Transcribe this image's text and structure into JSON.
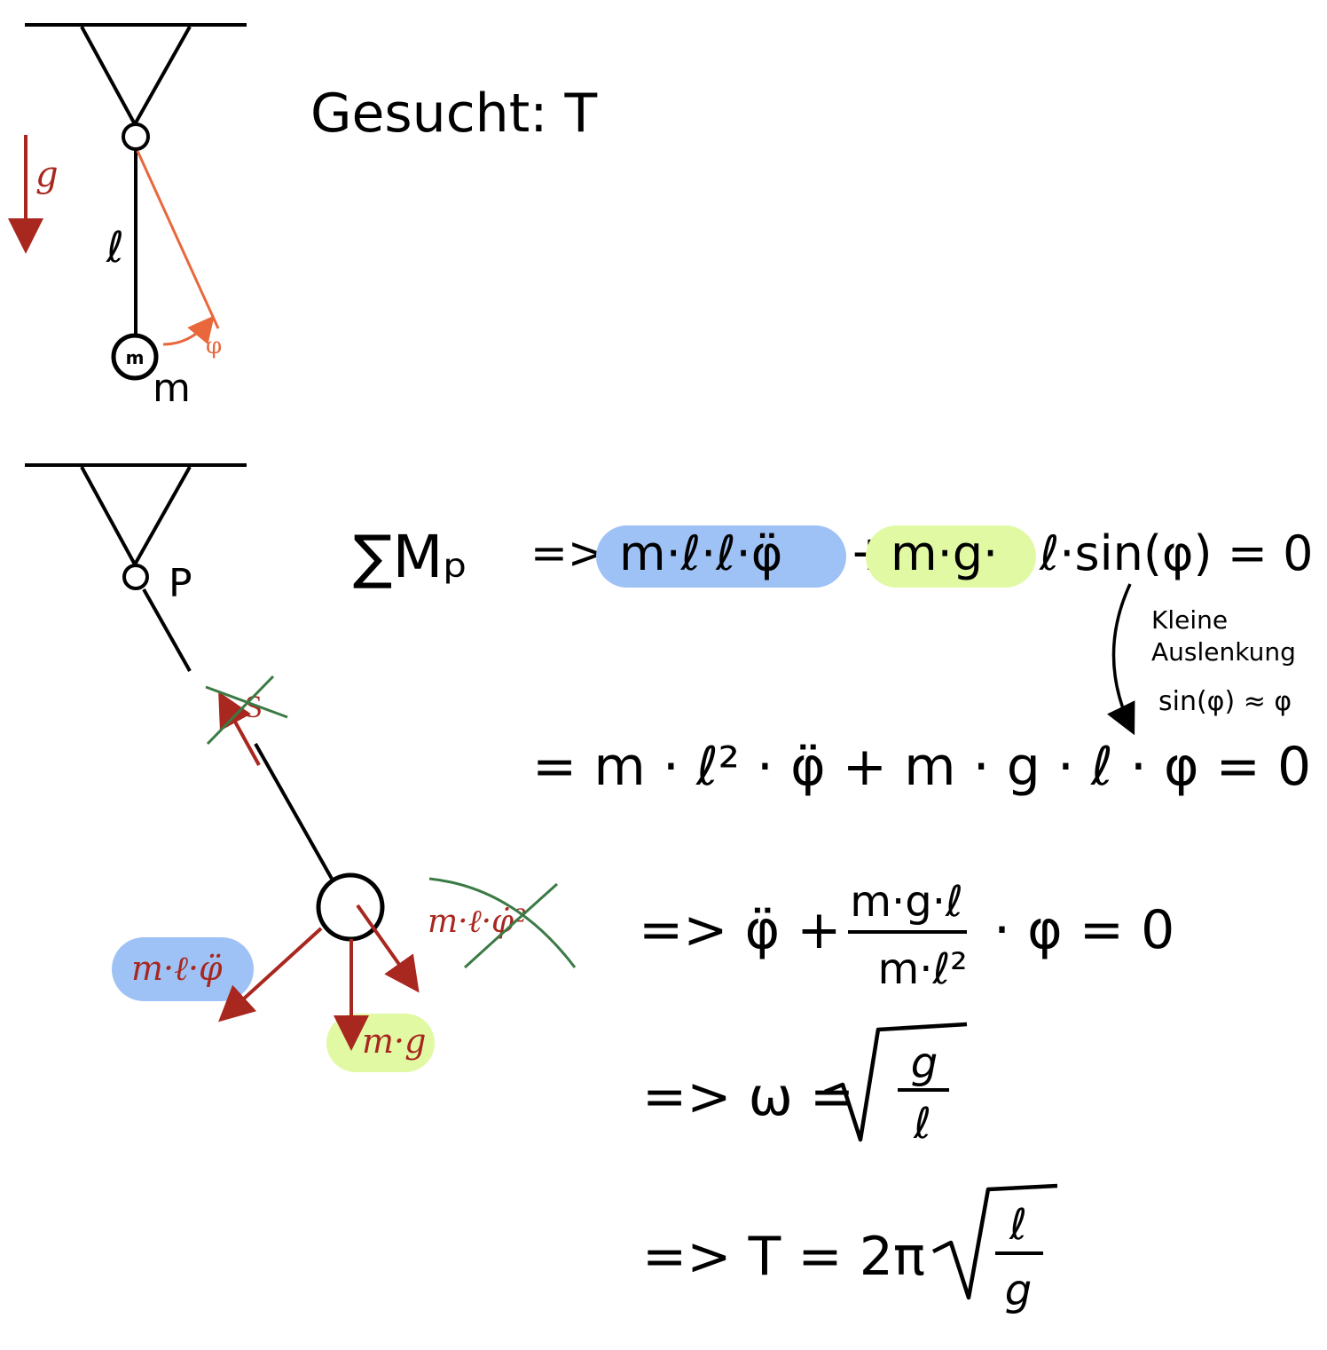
{
  "top_diagram": {
    "gravity_label": "g",
    "length_label": "ℓ",
    "mass_label": "m",
    "mass_symbol": "m",
    "angle_label": "φ"
  },
  "heading": {
    "text": "Gesucht: T"
  },
  "bottom_diagram": {
    "pivot_label": "P",
    "string_force_label": "S",
    "inertial_force_label": "m·ℓ·φ̈",
    "weight_label": "m·g",
    "centrifugal_force_label": "m·ℓ·φ̇²"
  },
  "equations": {
    "moment_sum": "∑Mₚ",
    "implies_1": "=>",
    "term_inertia": "m·ℓ·ℓ·φ̈",
    "plus_1": "+",
    "term_gravity": "m·g·",
    "term_rest": "ℓ·sin(φ) = 0",
    "note_line1": "Kleine",
    "note_line2": "Auslenkung",
    "note_line3": "sin(φ) ≈ φ",
    "line2": "=  m · ℓ² · φ̈ + m · g · ℓ · φ  = 0",
    "line3_prefix": "=> φ̈ +",
    "line3_numerator": "m·g·ℓ",
    "line3_denominator": "m·ℓ²",
    "line3_suffix": "· φ = 0",
    "line4_prefix": "=> ω =",
    "line4_numerator": "g",
    "line4_denominator": "ℓ",
    "line5_prefix": "=> T = 2π",
    "line5_numerator": "ℓ",
    "line5_denominator": "g"
  },
  "colors": {
    "ink": "#000000",
    "force_red": "#a8271f",
    "pendulum_orange": "#e8683c",
    "highlight_blue": "#9ec2f5",
    "highlight_green": "#e2f9a4",
    "strike_green": "#3b7a45"
  }
}
